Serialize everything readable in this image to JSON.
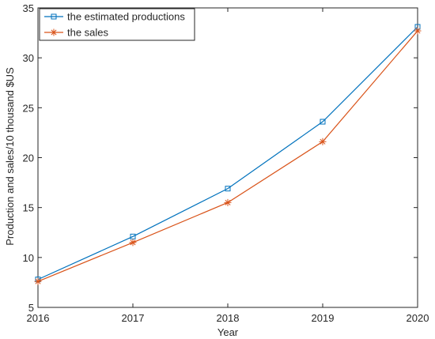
{
  "chart_data": {
    "type": "line",
    "xlabel": "Year",
    "ylabel": "Production and sales/10 thousand $US",
    "x": [
      2016,
      2017,
      2018,
      2019,
      2020
    ],
    "xlim": [
      2016,
      2020
    ],
    "ylim": [
      5,
      35
    ],
    "xticks": [
      2016,
      2017,
      2018,
      2019,
      2020
    ],
    "yticks": [
      5,
      10,
      15,
      20,
      25,
      30,
      35
    ],
    "grid": false,
    "legend_position": "top-left",
    "series": [
      {
        "name": "the estimated productions",
        "values": [
          7.8,
          12.1,
          16.9,
          23.6,
          33.1
        ],
        "color": "#0072BD",
        "marker": "square"
      },
      {
        "name": "the sales",
        "values": [
          7.6,
          11.5,
          15.5,
          21.6,
          32.7
        ],
        "color": "#D95319",
        "marker": "asterisk"
      }
    ]
  }
}
